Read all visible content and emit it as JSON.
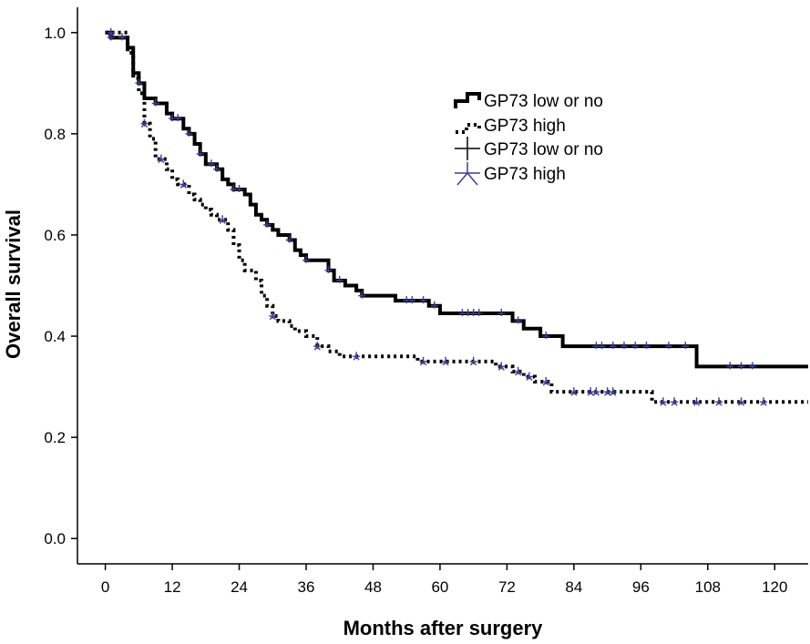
{
  "chart_data": {
    "type": "line",
    "subtype": "kaplan-meier",
    "xlabel": "Months after surgery",
    "ylabel": "Overall survival",
    "xlim": [
      -5,
      126
    ],
    "ylim": [
      -0.05,
      1.05
    ],
    "x_ticks": [
      0,
      12,
      24,
      36,
      48,
      60,
      72,
      84,
      96,
      108,
      120
    ],
    "y_ticks": [
      0.0,
      0.2,
      0.4,
      0.6,
      0.8,
      1.0
    ],
    "y_tick_labels": [
      "0.0",
      "0.2",
      "0.4",
      "0.6",
      "0.8",
      "1.0"
    ],
    "legend_position": "top-right",
    "legend": [
      {
        "label": "GP73 low or no",
        "symbol": "solid-step"
      },
      {
        "label": "GP73 high",
        "symbol": "dotted-step"
      },
      {
        "label": "GP73 low or no",
        "symbol": "censor-plus"
      },
      {
        "label": "GP73 high",
        "symbol": "censor-star"
      }
    ],
    "series": [
      {
        "name": "GP73 low or no",
        "style": "solid",
        "color": "#000000",
        "steps": [
          [
            0,
            1.0
          ],
          [
            1,
            0.99
          ],
          [
            4,
            0.97
          ],
          [
            5,
            0.92
          ],
          [
            6,
            0.9
          ],
          [
            7,
            0.87
          ],
          [
            9,
            0.86
          ],
          [
            11,
            0.84
          ],
          [
            12,
            0.83
          ],
          [
            14,
            0.81
          ],
          [
            15,
            0.8
          ],
          [
            16,
            0.78
          ],
          [
            17,
            0.76
          ],
          [
            18,
            0.74
          ],
          [
            20,
            0.73
          ],
          [
            21,
            0.71
          ],
          [
            22,
            0.7
          ],
          [
            23,
            0.69
          ],
          [
            25,
            0.68
          ],
          [
            26,
            0.66
          ],
          [
            27,
            0.64
          ],
          [
            28,
            0.63
          ],
          [
            29,
            0.62
          ],
          [
            30,
            0.61
          ],
          [
            31,
            0.6
          ],
          [
            33,
            0.59
          ],
          [
            34,
            0.57
          ],
          [
            35,
            0.56
          ],
          [
            36,
            0.55
          ],
          [
            40,
            0.53
          ],
          [
            41,
            0.51
          ],
          [
            43,
            0.5
          ],
          [
            45,
            0.49
          ],
          [
            46,
            0.48
          ],
          [
            52,
            0.47
          ],
          [
            58,
            0.46
          ],
          [
            60,
            0.445
          ],
          [
            73,
            0.43
          ],
          [
            75,
            0.415
          ],
          [
            78,
            0.4
          ],
          [
            82,
            0.38
          ],
          [
            106,
            0.34
          ],
          [
            126,
            0.34
          ]
        ],
        "censored_x": [
          1,
          3,
          6,
          9,
          12,
          13,
          15,
          17,
          19,
          20,
          23,
          24,
          29,
          33,
          36,
          40,
          42,
          46,
          54,
          55,
          57,
          59,
          64,
          65,
          66,
          67,
          71,
          74,
          79,
          88,
          89,
          91,
          93,
          95,
          97,
          101,
          104,
          112,
          114,
          116
        ]
      },
      {
        "name": "GP73 high",
        "style": "dotted",
        "color": "#000000",
        "steps": [
          [
            0,
            1.0
          ],
          [
            4,
            0.96
          ],
          [
            5,
            0.91
          ],
          [
            6,
            0.88
          ],
          [
            7,
            0.82
          ],
          [
            8,
            0.79
          ],
          [
            9,
            0.75
          ],
          [
            11,
            0.73
          ],
          [
            12,
            0.71
          ],
          [
            13,
            0.7
          ],
          [
            15,
            0.68
          ],
          [
            16,
            0.67
          ],
          [
            17,
            0.66
          ],
          [
            18,
            0.65
          ],
          [
            19,
            0.64
          ],
          [
            20,
            0.63
          ],
          [
            22,
            0.61
          ],
          [
            23,
            0.58
          ],
          [
            24,
            0.55
          ],
          [
            25,
            0.53
          ],
          [
            27,
            0.51
          ],
          [
            28,
            0.48
          ],
          [
            29,
            0.46
          ],
          [
            30,
            0.44
          ],
          [
            31,
            0.43
          ],
          [
            33,
            0.42
          ],
          [
            34,
            0.41
          ],
          [
            36,
            0.4
          ],
          [
            38,
            0.38
          ],
          [
            40,
            0.37
          ],
          [
            42,
            0.36
          ],
          [
            56,
            0.35
          ],
          [
            70,
            0.34
          ],
          [
            73,
            0.33
          ],
          [
            75,
            0.32
          ],
          [
            77,
            0.31
          ],
          [
            80,
            0.29
          ],
          [
            98,
            0.27
          ],
          [
            126,
            0.27
          ]
        ],
        "censored_x": [
          1,
          7,
          10,
          14,
          21,
          30,
          38,
          45,
          57,
          61,
          66,
          71,
          74,
          76,
          79,
          84,
          87,
          88,
          90,
          91,
          100,
          102,
          106,
          110,
          114,
          118
        ]
      }
    ]
  }
}
